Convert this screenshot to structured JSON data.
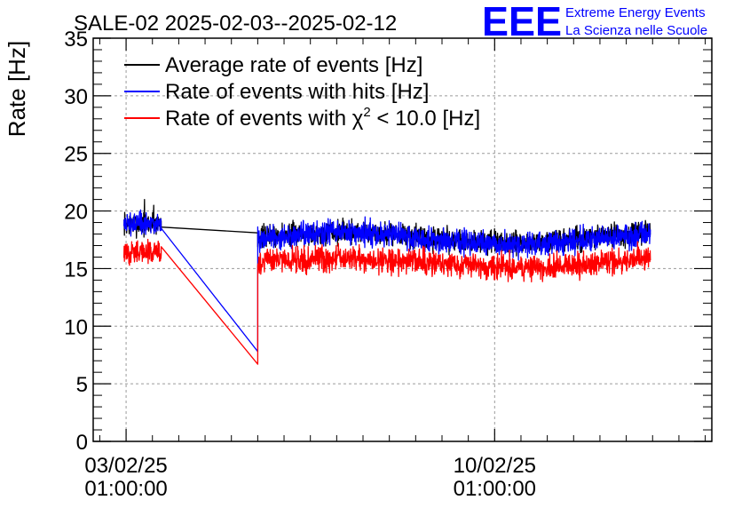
{
  "logo": {
    "mark": "EEE",
    "line1": "Extreme Energy Events",
    "line2": "La Scienza nelle Scuole",
    "color": "#0000ff"
  },
  "chart_data": {
    "type": "line",
    "title": "SALE-02 2025-02-03--2025-02-12",
    "ylabel": "Rate [Hz]",
    "xlabel": "",
    "ylim": [
      0,
      35
    ],
    "yticks": [
      0,
      5,
      10,
      15,
      20,
      25,
      30,
      35
    ],
    "xlim": [
      "2025-02-02 10:00:00",
      "2025-02-14 04:00:00"
    ],
    "xticks": [
      {
        "value": "2025-02-03 01:00:00",
        "label_date": "03/02/25",
        "label_time": "01:00:00"
      },
      {
        "value": "2025-02-10 01:00:00",
        "label_date": "10/02/25",
        "label_time": "01:00:00"
      }
    ],
    "grid": true,
    "legend": {
      "placement": "top-left",
      "entries": [
        {
          "series": 0,
          "text": "Average rate of events [Hz]"
        },
        {
          "series": 1,
          "text": "Rate of events with hits [Hz]"
        },
        {
          "series": 2,
          "prefix": "Rate of events with χ",
          "sup": "2",
          "suffix": " < 10.0 [Hz]"
        }
      ]
    },
    "series": [
      {
        "name": "Average rate of events [Hz]",
        "color": "#000000",
        "segments": [
          {
            "start": "2025-02-03 00:00:00",
            "end": "2025-02-03 17:00:00",
            "base": 18.9,
            "amp": 0.9,
            "spikes": [
              [
                0.55,
                21.0
              ],
              [
                0.8,
                20.5
              ]
            ]
          },
          {
            "start": "2025-02-03 17:00:00",
            "end": "2025-02-05 13:00:00",
            "from": 18.6,
            "to": 18.1,
            "linear": true
          },
          {
            "start": "2025-02-05 13:00:00",
            "end": "2025-02-13 00:00:00",
            "base": 17.7,
            "amp": 0.9,
            "trend": 0.5
          }
        ]
      },
      {
        "name": "Rate of events with hits [Hz]",
        "color": "#0000ff",
        "segments": [
          {
            "start": "2025-02-03 00:00:00",
            "end": "2025-02-03 17:00:00",
            "base": 18.8,
            "amp": 0.9
          },
          {
            "start": "2025-02-03 17:00:00",
            "end": "2025-02-05 13:00:00",
            "from": 18.5,
            "to": 7.8,
            "linear": true
          },
          {
            "start": "2025-02-05 13:00:00",
            "end": "2025-02-13 00:00:00",
            "base": 17.6,
            "amp": 0.95,
            "trend": 0.5
          }
        ]
      },
      {
        "name": "Rate of events with χ2 < 10.0 [Hz]",
        "color": "#ff0000",
        "segments": [
          {
            "start": "2025-02-03 00:00:00",
            "end": "2025-02-03 17:00:00",
            "base": 16.4,
            "amp": 0.9
          },
          {
            "start": "2025-02-03 17:00:00",
            "end": "2025-02-05 13:00:00",
            "from": 16.9,
            "to": 6.7,
            "linear": true
          },
          {
            "start": "2025-02-05 13:00:00",
            "end": "2025-02-13 00:00:00",
            "base": 15.5,
            "amp": 1.0,
            "trend": 0.4
          }
        ]
      }
    ]
  }
}
